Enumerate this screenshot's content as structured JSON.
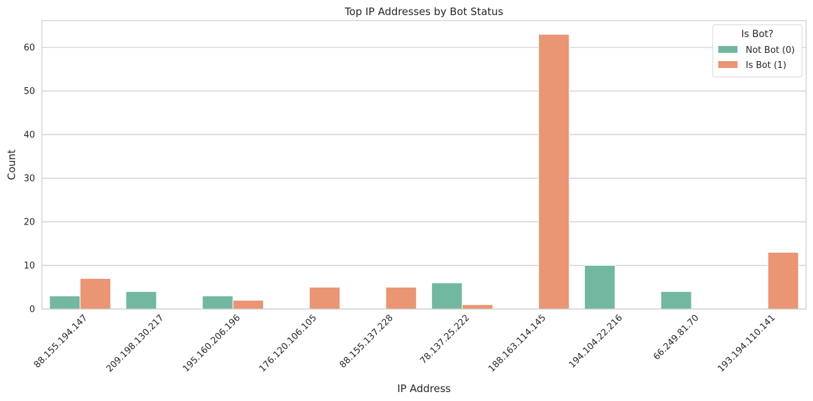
{
  "chart_data": {
    "type": "bar",
    "title": "Top IP Addresses by Bot Status",
    "xlabel": "IP Address",
    "ylabel": "Count",
    "categories": [
      "88.155.194.147",
      "209.198.130.217",
      "195.160.206.196",
      "176.120.106.105",
      "88.155.137.228",
      "78.137.25.222",
      "188.163.114.145",
      "194.104.22.216",
      "66.249.81.70",
      "193.194.110.141"
    ],
    "series": [
      {
        "name": "Not Bot (0)",
        "color": "#72b8a0",
        "values": [
          3,
          4,
          3,
          0,
          0,
          6,
          0,
          10,
          4,
          0
        ]
      },
      {
        "name": "Is Bot (1)",
        "color": "#ea9574",
        "values": [
          7,
          0,
          2,
          5,
          5,
          1,
          63,
          0,
          0,
          13
        ]
      }
    ],
    "ylim": [
      0,
      66.15
    ],
    "yticks": [
      0,
      10,
      20,
      30,
      40,
      50,
      60
    ],
    "grid": "horizontal",
    "legend": {
      "title": "Is Bot?",
      "placement": "top-right"
    }
  }
}
